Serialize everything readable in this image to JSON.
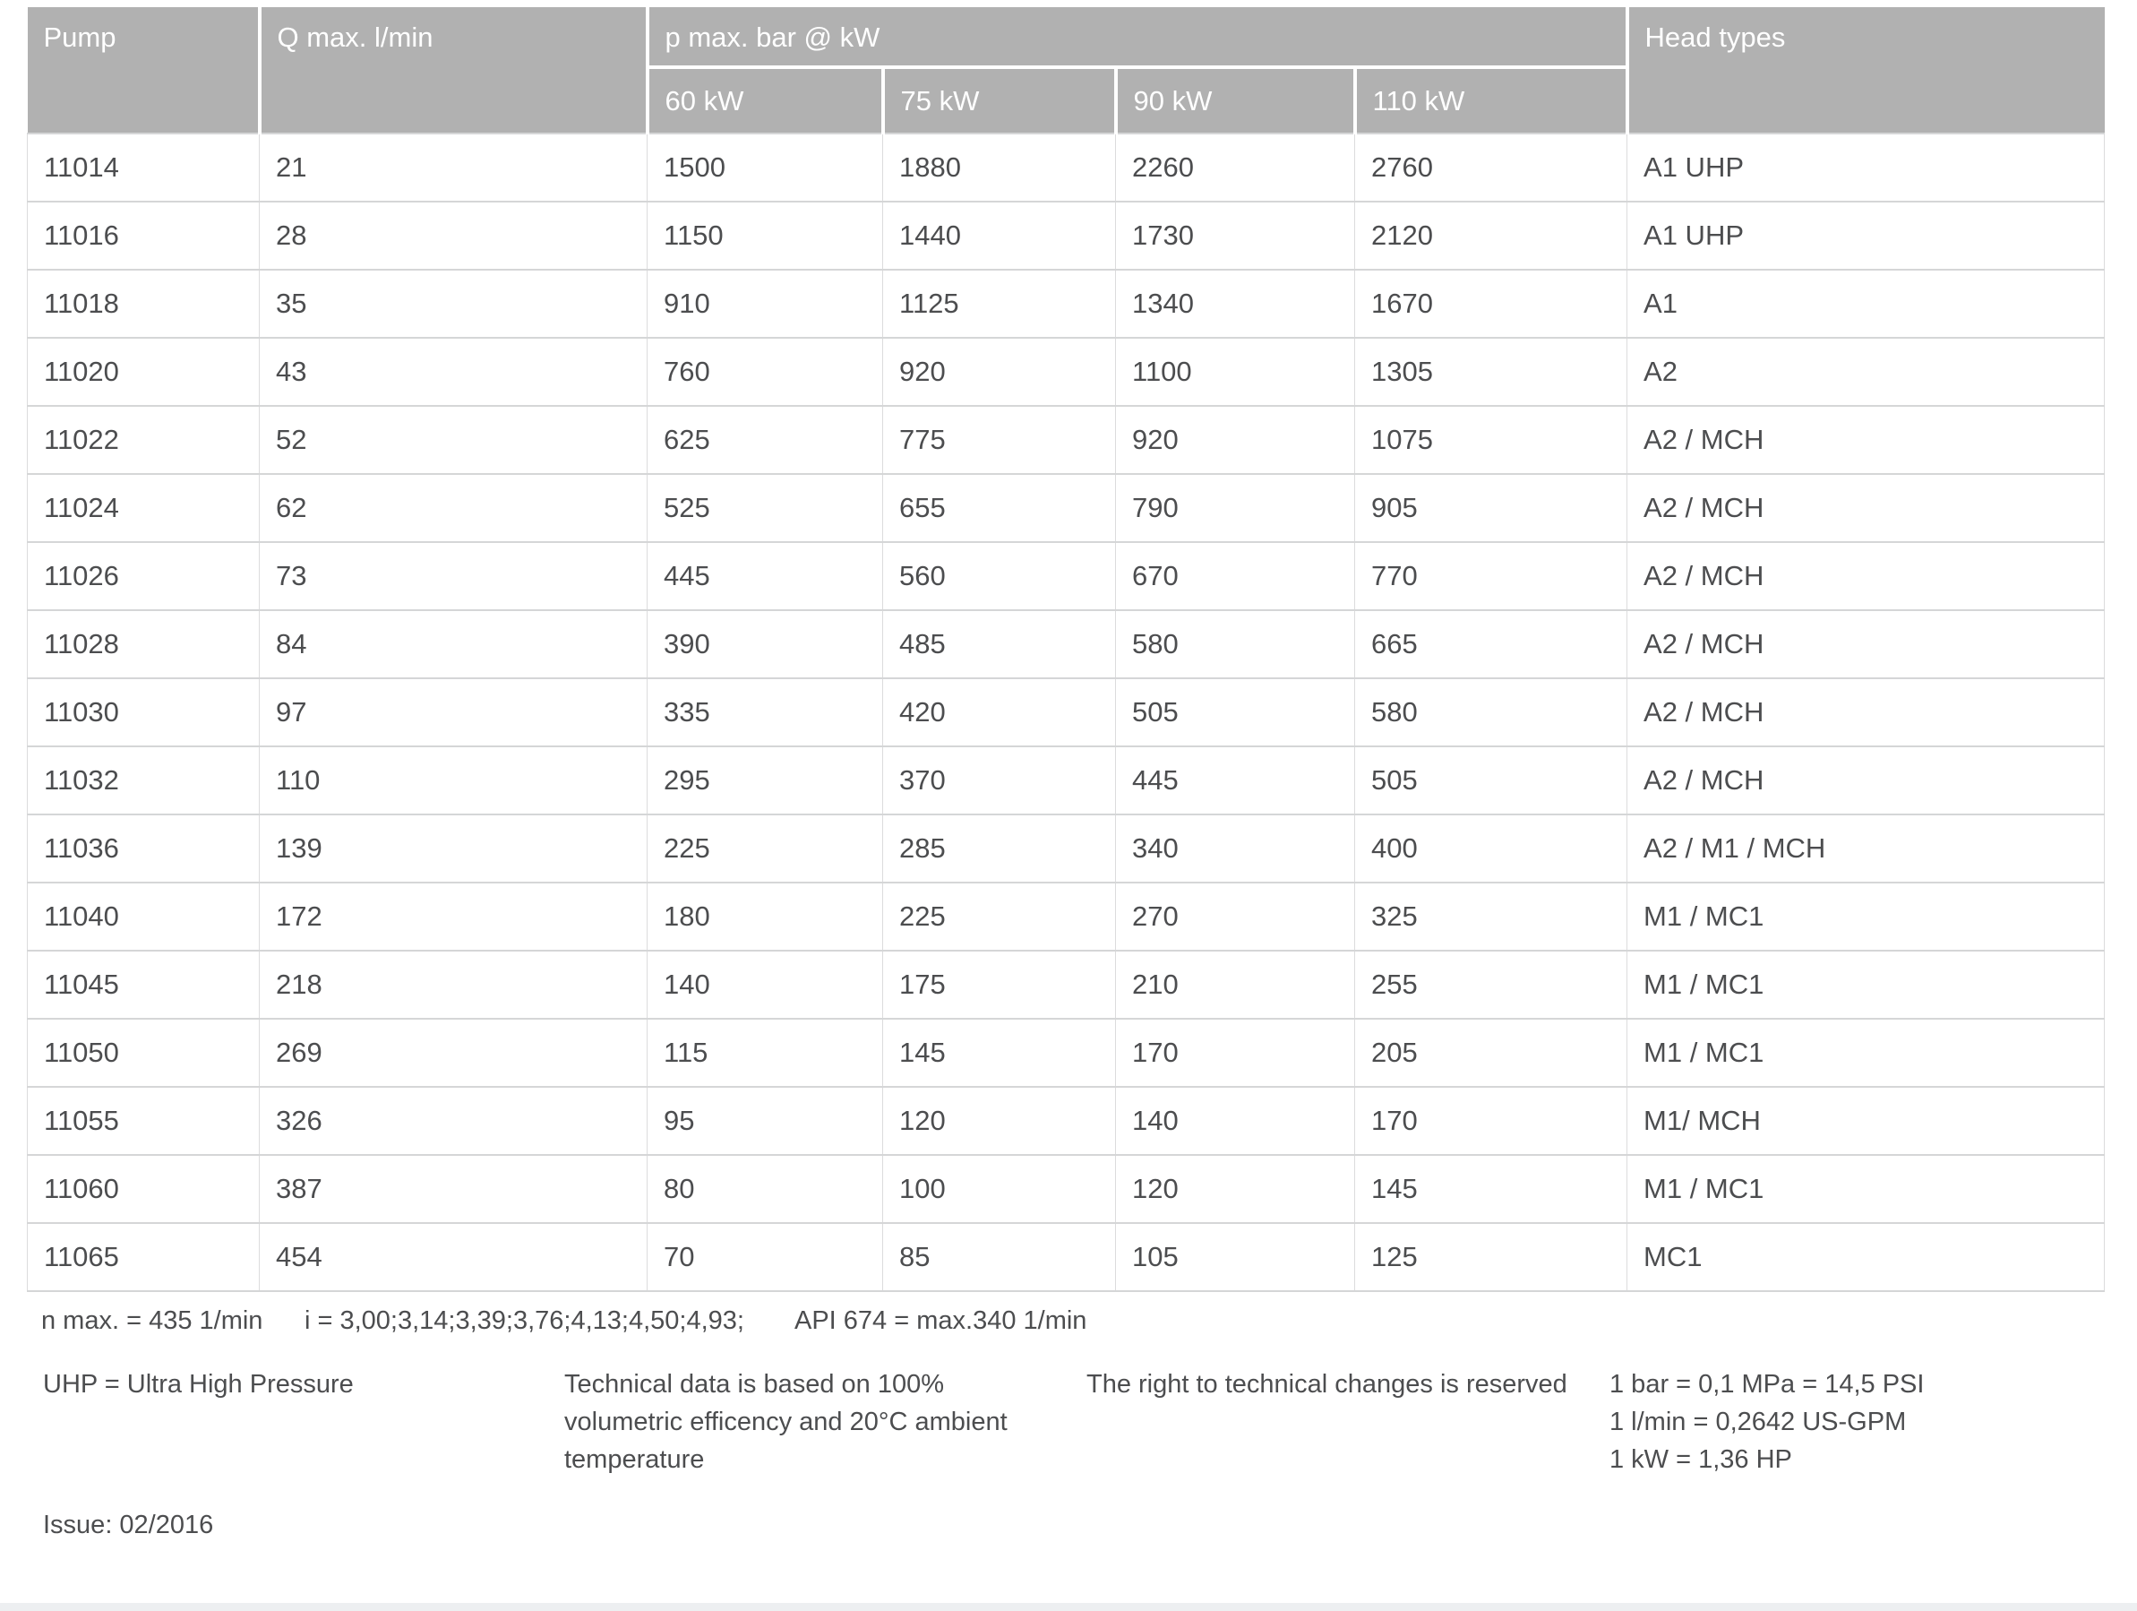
{
  "table": {
    "headers": {
      "pump": "Pump",
      "q_max": "Q max. l/min",
      "p_max": "p max. bar @ kW",
      "kw_columns": [
        "60 kW",
        "75 kW",
        "90 kW",
        "110 kW"
      ],
      "head_types": "Head types"
    },
    "rows": [
      {
        "pump": "11014",
        "q": "21",
        "p60": "1500",
        "p75": "1880",
        "p90": "2260",
        "p110": "2760",
        "head": "A1 UHP"
      },
      {
        "pump": "11016",
        "q": "28",
        "p60": "1150",
        "p75": "1440",
        "p90": "1730",
        "p110": "2120",
        "head": "A1 UHP"
      },
      {
        "pump": "11018",
        "q": "35",
        "p60": "910",
        "p75": "1125",
        "p90": "1340",
        "p110": "1670",
        "head": "A1"
      },
      {
        "pump": "11020",
        "q": "43",
        "p60": "760",
        "p75": "920",
        "p90": "1100",
        "p110": "1305",
        "head": "A2"
      },
      {
        "pump": "11022",
        "q": "52",
        "p60": "625",
        "p75": "775",
        "p90": "920",
        "p110": "1075",
        "head": "A2 / MCH"
      },
      {
        "pump": "11024",
        "q": "62",
        "p60": "525",
        "p75": "655",
        "p90": "790",
        "p110": "905",
        "head": "A2 / MCH"
      },
      {
        "pump": "11026",
        "q": "73",
        "p60": "445",
        "p75": "560",
        "p90": "670",
        "p110": "770",
        "head": "A2 / MCH"
      },
      {
        "pump": "11028",
        "q": "84",
        "p60": "390",
        "p75": "485",
        "p90": "580",
        "p110": "665",
        "head": "A2 / MCH"
      },
      {
        "pump": "11030",
        "q": "97",
        "p60": "335",
        "p75": "420",
        "p90": "505",
        "p110": "580",
        "head": "A2 / MCH"
      },
      {
        "pump": "11032",
        "q": "110",
        "p60": "295",
        "p75": "370",
        "p90": "445",
        "p110": "505",
        "head": "A2 / MCH"
      },
      {
        "pump": "11036",
        "q": "139",
        "p60": "225",
        "p75": "285",
        "p90": "340",
        "p110": "400",
        "head": "A2 / M1 / MCH"
      },
      {
        "pump": "11040",
        "q": "172",
        "p60": "180",
        "p75": "225",
        "p90": "270",
        "p110": "325",
        "head": "M1 / MC1"
      },
      {
        "pump": "11045",
        "q": "218",
        "p60": "140",
        "p75": "175",
        "p90": "210",
        "p110": "255",
        "head": "M1 / MC1"
      },
      {
        "pump": "11050",
        "q": "269",
        "p60": "115",
        "p75": "145",
        "p90": "170",
        "p110": "205",
        "head": "M1 / MC1"
      },
      {
        "pump": "11055",
        "q": "326",
        "p60": "95",
        "p75": "120",
        "p90": "140",
        "p110": "170",
        "head": "M1/ MCH"
      },
      {
        "pump": "11060",
        "q": "387",
        "p60": "80",
        "p75": "100",
        "p90": "120",
        "p110": "145",
        "head": "M1 / MC1"
      },
      {
        "pump": "11065",
        "q": "454",
        "p60": "70",
        "p75": "85",
        "p90": "105",
        "p110": "125",
        "head": "MC1"
      }
    ]
  },
  "footnotes": {
    "n_max": "n max. = 435 1/min",
    "gear_ratios": "i = 3,00;3,14;3,39;3,76;4,13;4,50;4,93;",
    "api": "API 674 = max.340 1/min",
    "uhp": "UHP = Ultra High Pressure",
    "technical_lines": [
      "Technical data is based on 100%",
      "volumetric efficency and 20°C ambient",
      "temperature"
    ],
    "rights": "The right to technical changes is reserved",
    "conversions": [
      "1 bar = 0,1 MPa = 14,5 PSI",
      "1 l/min = 0,2642 US-GPM",
      "1 kW = 1,36 HP"
    ],
    "issue": "Issue: 02/2016"
  },
  "colors": {
    "header_bg": "#b1b1b1",
    "header_text": "#ffffff",
    "body_text": "#4c4d4f",
    "grid_line": "#d5d6d7",
    "grid_line_vertical": "#dcdcdd",
    "bottom_bar": "#edeff1"
  }
}
